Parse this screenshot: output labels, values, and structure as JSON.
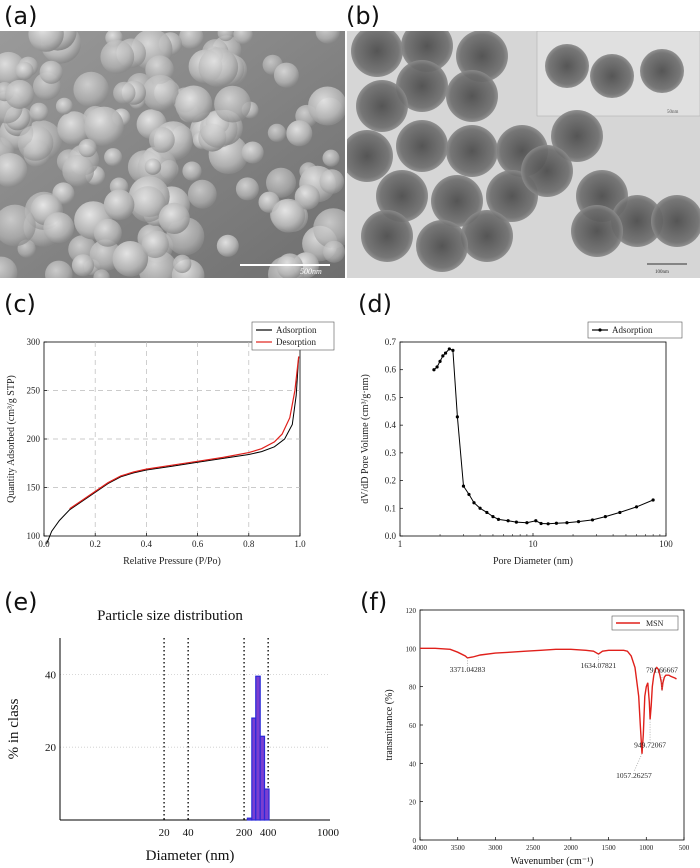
{
  "panels": {
    "a": {
      "label": "(a)",
      "scalebar": "500nm",
      "colors": {
        "background": "#8f8f8f",
        "particle": "#cfcfcf"
      }
    },
    "b": {
      "label": "(b)",
      "scalebar_main": "100nm",
      "scalebar_inset": "50nm",
      "colors": {
        "background": "#d9d9d9",
        "particle": "#5a5a5a"
      }
    },
    "c": {
      "label": "(c)"
    },
    "d": {
      "label": "(d)"
    },
    "e": {
      "label": "(e)"
    },
    "f": {
      "label": "(f)"
    }
  },
  "chart_data": [
    {
      "panel": "c",
      "type": "line",
      "xlabel": "Relative Pressure (P/Po)",
      "ylabel": "Quantity Adsorbed (cm³/g STP)",
      "xlim": [
        0,
        1.0
      ],
      "ylim": [
        100,
        300
      ],
      "xticks": [
        "0.0",
        "0.2",
        "0.4",
        "0.6",
        "0.8",
        "1.0"
      ],
      "yticks": [
        "100",
        "150",
        "200",
        "250",
        "300"
      ],
      "grid": true,
      "legend": "top-right",
      "series": [
        {
          "name": "Adsorption",
          "color": "#000000",
          "x": [
            0.01,
            0.03,
            0.06,
            0.1,
            0.15,
            0.2,
            0.25,
            0.3,
            0.35,
            0.4,
            0.5,
            0.6,
            0.7,
            0.8,
            0.85,
            0.9,
            0.94,
            0.97,
            0.985,
            0.995
          ],
          "y": [
            92,
            105,
            116,
            127,
            136,
            145,
            154,
            161,
            165,
            168,
            172,
            176,
            180,
            184,
            187,
            192,
            200,
            215,
            245,
            285
          ]
        },
        {
          "name": "Desorption",
          "color": "#e0201b",
          "x": [
            0.1,
            0.15,
            0.2,
            0.25,
            0.3,
            0.35,
            0.4,
            0.5,
            0.6,
            0.7,
            0.8,
            0.85,
            0.9,
            0.93,
            0.96,
            0.98,
            0.995
          ],
          "y": [
            128,
            137,
            146,
            155,
            162,
            166,
            169,
            173,
            177,
            181,
            186,
            190,
            197,
            205,
            222,
            250,
            285
          ]
        }
      ]
    },
    {
      "panel": "d",
      "type": "line",
      "xlabel": "Pore Diameter (nm)",
      "ylabel": "dV/dD Pore Volume (cm³/g·nm)",
      "xscale": "log",
      "xlim": [
        1,
        100
      ],
      "ylim": [
        0,
        0.7
      ],
      "xticks": [
        "1",
        "10",
        "100"
      ],
      "yticks": [
        "0.0",
        "0.1",
        "0.2",
        "0.3",
        "0.4",
        "0.5",
        "0.6",
        "0.7"
      ],
      "grid": false,
      "legend": "top-right",
      "series": [
        {
          "name": "Adsorption",
          "color": "#000000",
          "x": [
            1.8,
            1.9,
            2.0,
            2.1,
            2.2,
            2.35,
            2.5,
            2.7,
            3.0,
            3.3,
            3.6,
            4.0,
            4.5,
            5.0,
            5.5,
            6.5,
            7.5,
            9.0,
            10.5,
            11.5,
            13,
            15,
            18,
            22,
            28,
            35,
            45,
            60,
            80
          ],
          "y": [
            0.6,
            0.61,
            0.63,
            0.65,
            0.66,
            0.675,
            0.67,
            0.43,
            0.18,
            0.15,
            0.12,
            0.1,
            0.085,
            0.07,
            0.06,
            0.055,
            0.05,
            0.048,
            0.055,
            0.045,
            0.044,
            0.046,
            0.048,
            0.052,
            0.058,
            0.07,
            0.085,
            0.105,
            0.13
          ]
        }
      ]
    },
    {
      "panel": "e",
      "type": "bar",
      "title": "Particle size distribution",
      "xlabel": "Diameter (nm)",
      "ylabel": "% in class",
      "xscale": "log",
      "xlim": [
        1,
        1000
      ],
      "ylim": [
        0,
        50
      ],
      "xticks": [
        "20",
        "40",
        "200",
        "400",
        "1000"
      ],
      "yticks": [
        "20",
        "40"
      ],
      "grid": true,
      "colors": {
        "bar_fill": "#7a3fd0",
        "bar_edge": "#2a2ad8"
      },
      "bars": [
        {
          "from": 220,
          "to": 250,
          "value": 0.5
        },
        {
          "from": 250,
          "to": 280,
          "value": 28
        },
        {
          "from": 280,
          "to": 318,
          "value": 39.5
        },
        {
          "from": 318,
          "to": 360,
          "value": 23
        },
        {
          "from": 360,
          "to": 410,
          "value": 8.5
        }
      ],
      "markers": [
        20,
        40,
        200,
        400
      ]
    },
    {
      "panel": "f",
      "type": "line",
      "xlabel": "Wavenumber (cm⁻¹)",
      "ylabel": "transmittance (%)",
      "xlim": [
        4000,
        500
      ],
      "ylim": [
        0,
        120
      ],
      "xticks": [
        "4000",
        "3500",
        "3000",
        "2500",
        "2000",
        "1500",
        "1000",
        "500"
      ],
      "yticks": [
        "0",
        "20",
        "40",
        "60",
        "80",
        "100",
        "120"
      ],
      "grid": false,
      "legend": "top-right",
      "annotations": [
        {
          "text": "3371.04283",
          "x": 3371,
          "y": 95
        },
        {
          "text": "1634.07821",
          "x": 1634,
          "y": 97
        },
        {
          "text": "1057.26257",
          "x": 1057,
          "y": 45
        },
        {
          "text": "949.72067",
          "x": 950,
          "y": 63
        },
        {
          "text": "791.66667",
          "x": 792,
          "y": 78
        }
      ],
      "series": [
        {
          "name": "MSN",
          "color": "#e0201b",
          "x": [
            4000,
            3800,
            3600,
            3500,
            3400,
            3371,
            3300,
            3200,
            3000,
            2800,
            2600,
            2400,
            2200,
            2000,
            1800,
            1700,
            1634,
            1580,
            1500,
            1400,
            1300,
            1250,
            1200,
            1150,
            1100,
            1080,
            1057,
            1040,
            1020,
            1000,
            980,
            960,
            950,
            935,
            920,
            900,
            880,
            860,
            840,
            820,
            800,
            792,
            780,
            760,
            740,
            720,
            700,
            680,
            650,
            620,
            600
          ],
          "y": [
            100,
            100,
            99.5,
            98,
            96,
            95,
            95.5,
            96.5,
            97.5,
            98,
            98.5,
            99,
            99.5,
            99.5,
            99,
            98.5,
            97,
            98.5,
            99,
            99,
            99,
            98.5,
            96,
            90,
            75,
            60,
            45,
            55,
            75,
            80,
            82,
            72,
            63,
            70,
            80,
            86,
            89,
            90,
            89,
            86,
            82,
            78,
            82,
            85,
            86,
            86,
            86,
            85.5,
            85,
            84.5,
            84
          ]
        }
      ]
    }
  ]
}
